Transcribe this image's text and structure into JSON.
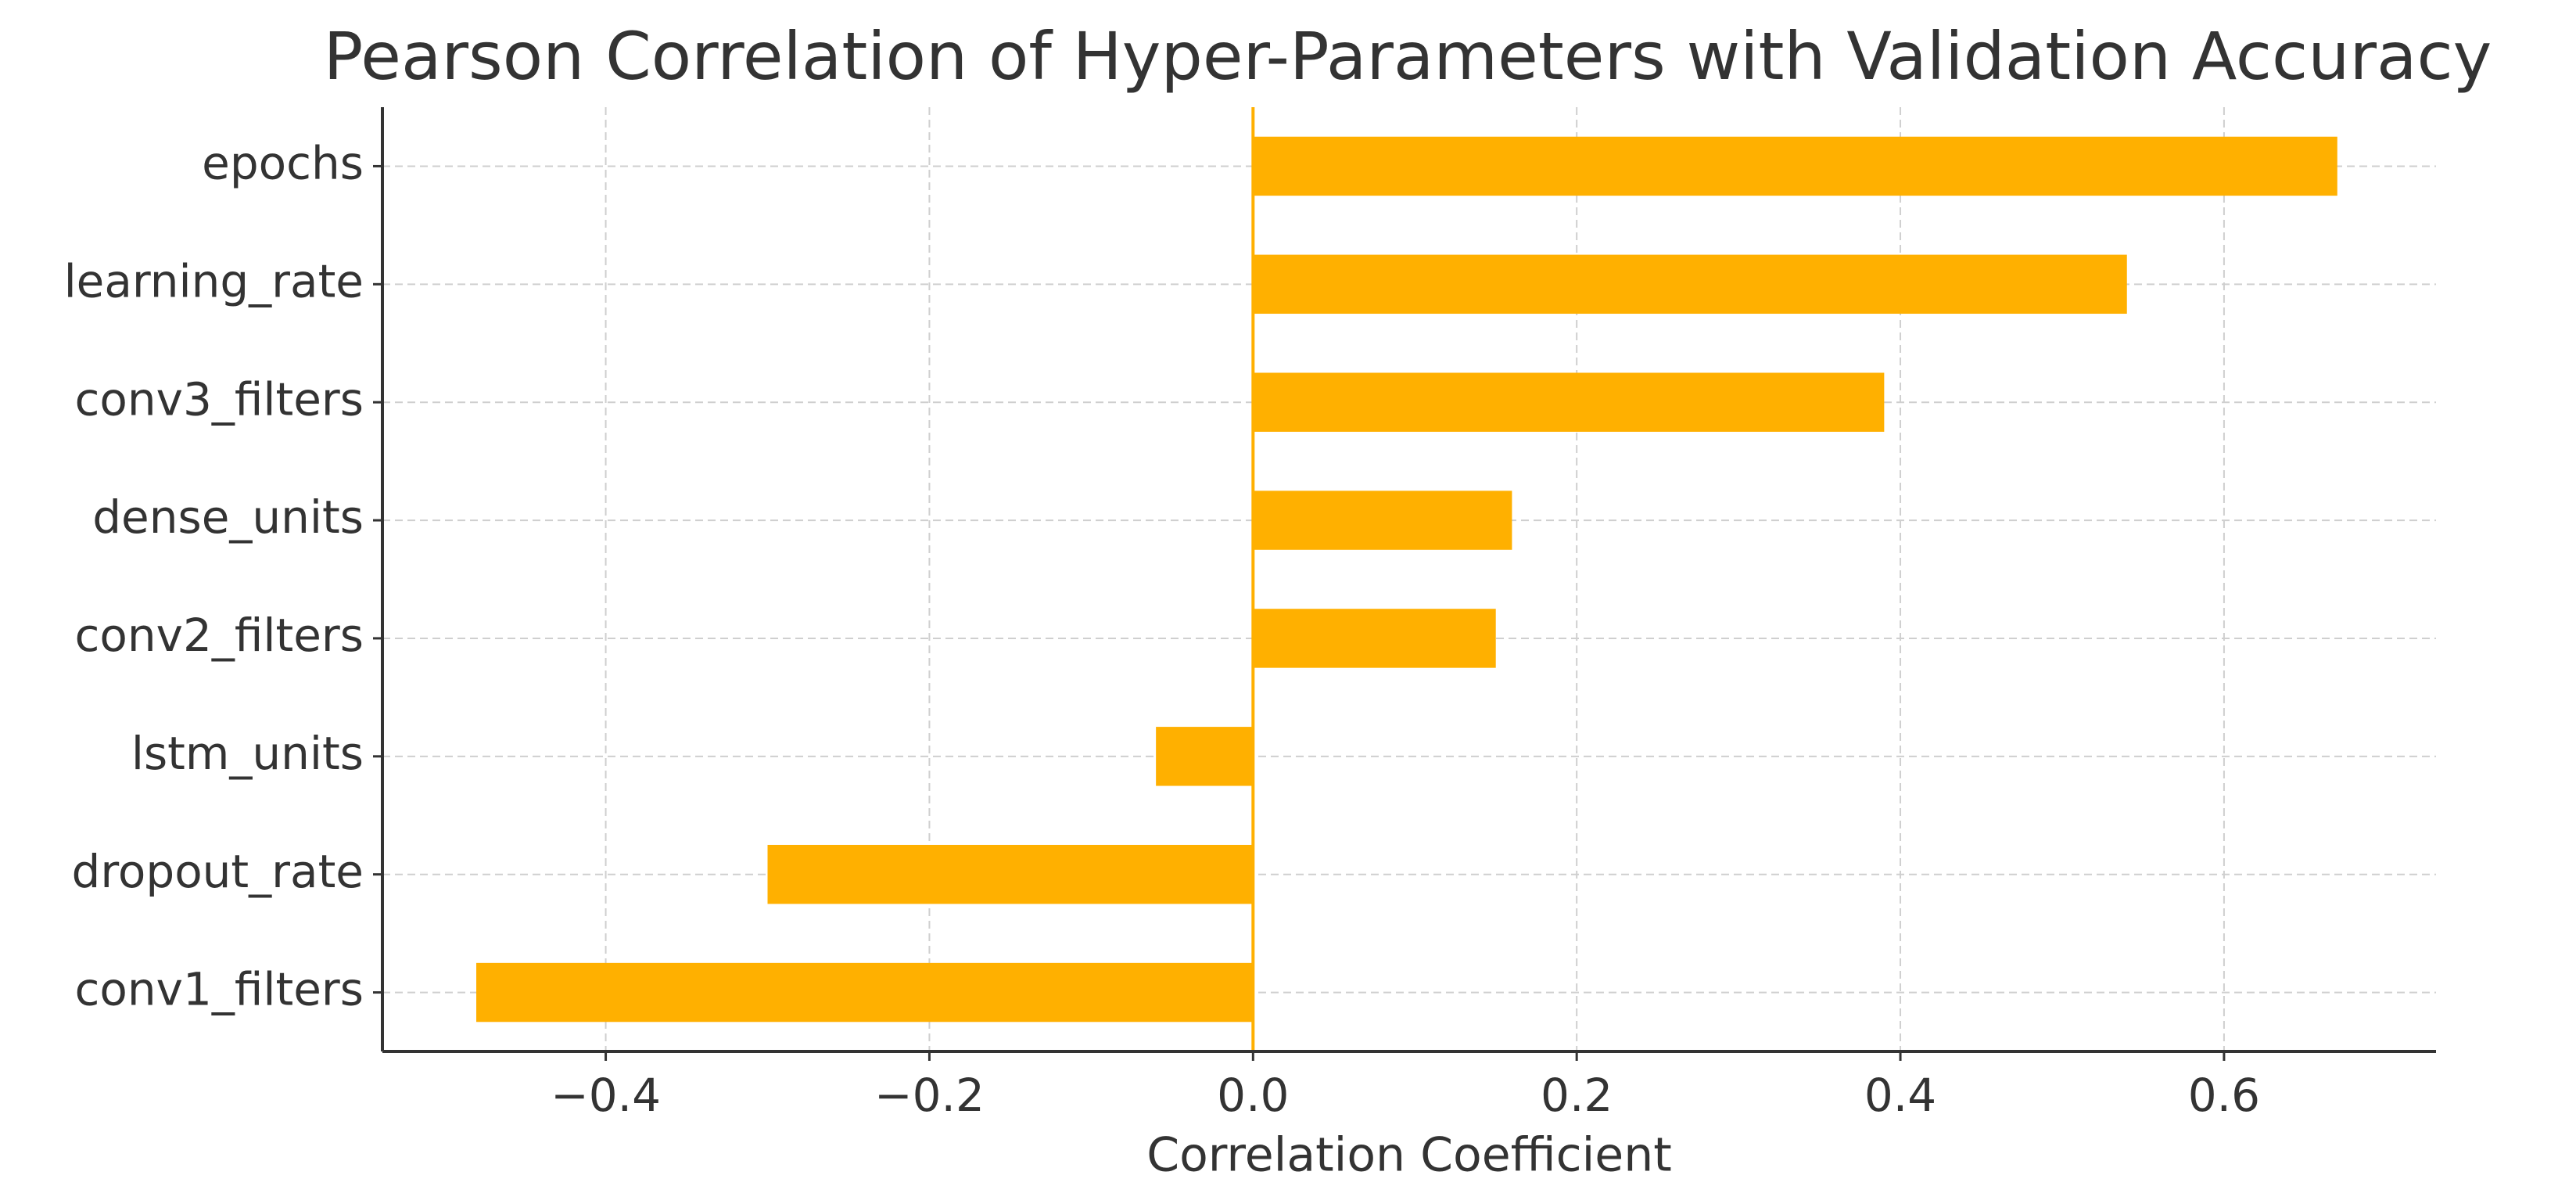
{
  "chart_data": {
    "type": "barh",
    "title": "Pearson Correlation of Hyper-Parameters with Validation Accuracy",
    "xlabel": "Correlation Coefficient",
    "categories": [
      "epochs",
      "learning_rate",
      "conv3_filters",
      "dense_units",
      "conv2_filters",
      "lstm_units",
      "dropout_rate",
      "conv1_filters"
    ],
    "values": [
      0.67,
      0.54,
      0.39,
      0.16,
      0.15,
      -0.06,
      -0.3,
      -0.48
    ],
    "color": "#ffb000",
    "xlim": [
      -0.538,
      0.731
    ],
    "xticks": [
      {
        "value": -0.4,
        "label": "−0.4"
      },
      {
        "value": -0.2,
        "label": "−0.2"
      },
      {
        "value": 0.0,
        "label": "0.0"
      },
      0.2,
      0.4,
      0.6
    ],
    "grid": true
  }
}
